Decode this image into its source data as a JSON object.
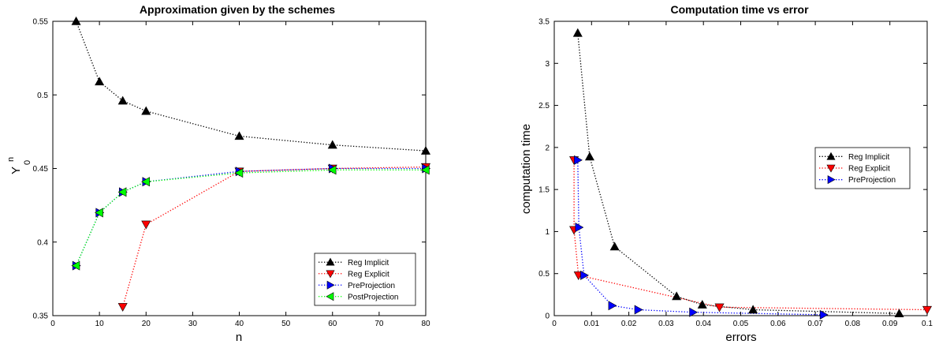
{
  "chart_data": [
    {
      "type": "line",
      "title": "Approximation given by the schemes",
      "xlabel": "n",
      "ylabel": "Y",
      "ylabel_sup": "n",
      "ylabel_sub": "0",
      "xlim": [
        0,
        80
      ],
      "ylim": [
        0.35,
        0.55
      ],
      "xticks": [
        0,
        10,
        20,
        30,
        40,
        50,
        60,
        70,
        80
      ],
      "yticks": [
        0.35,
        0.4,
        0.45,
        0.5,
        0.55
      ],
      "ytick_labels": [
        "0.35",
        "0.4",
        "0.45",
        "0.5",
        "0.55"
      ],
      "grid": false,
      "legend_position": "bottom-right",
      "series": [
        {
          "name": "Reg Implicit",
          "color": "#000000",
          "marker": "triangle-up",
          "x": [
            5,
            10,
            15,
            20,
            40,
            60,
            80
          ],
          "y": [
            0.55,
            0.509,
            0.496,
            0.489,
            0.472,
            0.466,
            0.462
          ]
        },
        {
          "name": "Reg Explicit",
          "color": "#ff0000",
          "marker": "triangle-down",
          "x": [
            15,
            20,
            40,
            60,
            80
          ],
          "y": [
            0.356,
            0.412,
            0.448,
            0.45,
            0.451
          ]
        },
        {
          "name": "PreProjection",
          "color": "#0000ff",
          "marker": "triangle-right",
          "x": [
            5,
            10,
            15,
            20,
            40,
            60,
            80
          ],
          "y": [
            0.384,
            0.42,
            0.434,
            0.441,
            0.448,
            0.45,
            0.45
          ]
        },
        {
          "name": "PostProjection",
          "color": "#00ff00",
          "marker": "triangle-left",
          "x": [
            5,
            10,
            15,
            20,
            40,
            60,
            80
          ],
          "y": [
            0.384,
            0.42,
            0.434,
            0.441,
            0.447,
            0.449,
            0.449
          ]
        }
      ]
    },
    {
      "type": "line",
      "title": "Computation time vs error",
      "xlabel": "errors",
      "ylabel": "computation time",
      "xlim": [
        0,
        0.1
      ],
      "ylim": [
        0,
        3.5
      ],
      "xticks": [
        0,
        0.01,
        0.02,
        0.03,
        0.04,
        0.05,
        0.06,
        0.07,
        0.08,
        0.09,
        0.1
      ],
      "xtick_labels": [
        "0",
        "0.01",
        "0.02",
        "0.03",
        "0.04",
        "0.05",
        "0.06",
        "0.07",
        "0.08",
        "0.09",
        "0.1"
      ],
      "yticks": [
        0,
        0.5,
        1,
        1.5,
        2,
        2.5,
        3,
        3.5
      ],
      "ytick_labels": [
        "0",
        "0.5",
        "1",
        "1.5",
        "2",
        "2.5",
        "3",
        "3.5"
      ],
      "grid": false,
      "legend_position": "right",
      "series": [
        {
          "name": "Reg Implicit",
          "color": "#000000",
          "marker": "triangle-up",
          "x": [
            0.0063,
            0.0095,
            0.0162,
            0.0328,
            0.0397,
            0.0533,
            0.0925
          ],
          "y": [
            3.36,
            1.89,
            0.82,
            0.23,
            0.13,
            0.07,
            0.025
          ]
        },
        {
          "name": "Reg Explicit",
          "color": "#ff0000",
          "marker": "triangle-down",
          "x": [
            0.0053,
            0.0053,
            0.0065,
            0.0443,
            0.1
          ],
          "y": [
            1.85,
            1.02,
            0.48,
            0.1,
            0.07
          ]
        },
        {
          "name": "PreProjection",
          "color": "#0000ff",
          "marker": "triangle-right",
          "x": [
            0.0063,
            0.0066,
            0.008,
            0.0155,
            0.0225,
            0.0372,
            0.0722
          ],
          "y": [
            1.85,
            1.05,
            0.48,
            0.12,
            0.07,
            0.04,
            0.01
          ]
        }
      ]
    }
  ]
}
